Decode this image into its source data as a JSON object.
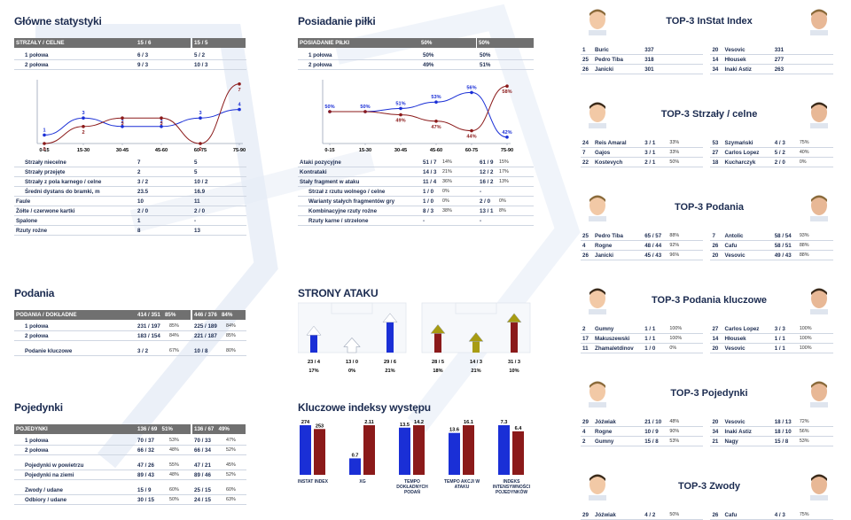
{
  "main_stats": {
    "title": "Główne statystyki",
    "header": {
      "label": "STRZAŁY / CELNE",
      "a": "15 / 6",
      "b": "15 / 5"
    },
    "halves": [
      {
        "label": "1 połowa",
        "a": "6 / 3",
        "b": "5 / 2"
      },
      {
        "label": "2 połowa",
        "a": "9 / 3",
        "b": "10 / 3"
      }
    ],
    "rows": [
      {
        "label": "Strzały niecelne",
        "a": "7",
        "b": "5",
        "indent": true
      },
      {
        "label": "Strzały przejęte",
        "a": "2",
        "b": "5",
        "indent": true
      },
      {
        "label": "Strzały z pola karnego / celne",
        "a": "3 / 2",
        "b": "10 / 2",
        "indent": true
      },
      {
        "label": "Średni dystans do bramki, m",
        "a": "23.5",
        "b": "16.9",
        "indent": true
      },
      {
        "label": "Faule",
        "a": "10",
        "b": "11",
        "indent": false
      },
      {
        "label": "Żółte / czerwone kartki",
        "a": "2 / 0",
        "b": "2 / 0",
        "indent": false
      },
      {
        "label": "Spalone",
        "a": "1",
        "b": "-",
        "indent": false
      },
      {
        "label": "Rzuty rożne",
        "a": "8",
        "b": "13",
        "indent": false
      }
    ]
  },
  "shots_chart": {
    "type": "line",
    "categories": [
      "0-15",
      "15-30",
      "30-45",
      "45-60",
      "60-75",
      "75-90"
    ],
    "series": [
      {
        "values": [
          1,
          3,
          2,
          2,
          3,
          4
        ],
        "color": "#1a2fd6"
      },
      {
        "values": [
          0,
          2,
          3,
          3,
          0,
          7
        ],
        "color": "#8b1a1a"
      }
    ],
    "ylim": [
      0,
      7.5
    ]
  },
  "possession": {
    "title": "Posiadanie piłki",
    "header": {
      "label": "POSIADANIE PIŁKI",
      "a": "50%",
      "b": "50%"
    },
    "halves": [
      {
        "label": "1 połowa",
        "a": "50%",
        "b": "50%"
      },
      {
        "label": "2 połowa",
        "a": "49%",
        "b": "51%"
      }
    ],
    "rows": [
      {
        "label": "Ataki pozycyjne",
        "a": "51 / 7",
        "ap": "14%",
        "b": "61 / 9",
        "bp": "15%",
        "indent": false
      },
      {
        "label": "Kontrataki",
        "a": "14 / 3",
        "ap": "21%",
        "b": "12 / 2",
        "bp": "17%",
        "indent": false
      },
      {
        "label": "Stały fragment w ataku",
        "a": "11 / 4",
        "ap": "36%",
        "b": "16 / 2",
        "bp": "13%",
        "indent": false
      },
      {
        "label": "Strzał z rzutu wolnego / celne",
        "a": "1 / 0",
        "ap": "0%",
        "b": "-",
        "bp": "",
        "indent": true
      },
      {
        "label": "Warianty stałych fragmentów gry",
        "a": "1 / 0",
        "ap": "0%",
        "b": "2 / 0",
        "bp": "0%",
        "indent": true
      },
      {
        "label": "Kombinacyjne rzuty rożne",
        "a": "8 / 3",
        "ap": "38%",
        "b": "13 / 1",
        "bp": "8%",
        "indent": true
      },
      {
        "label": "Rzuty karne / strzelone",
        "a": "-",
        "ap": "",
        "b": "-",
        "bp": "",
        "indent": true
      }
    ]
  },
  "possession_chart": {
    "type": "line",
    "categories": [
      "0-15",
      "15-30",
      "30-45",
      "45-60",
      "60-75",
      "75-90"
    ],
    "series": [
      {
        "values": [
          50,
          50,
          51,
          53,
          56,
          42
        ],
        "labels": [
          "50%",
          "50%",
          "51%",
          "53%",
          "56%",
          "42%"
        ],
        "color": "#1a2fd6"
      },
      {
        "values": [
          50,
          50,
          49,
          47,
          44,
          58
        ],
        "labels": [
          "",
          "",
          "49%",
          "47%",
          "44%",
          "58%"
        ],
        "color": "#8b1a1a"
      }
    ],
    "ylim": [
      40,
      60
    ]
  },
  "passes": {
    "title": "Podania",
    "header": {
      "label": "PODANIA / DOKŁADNE",
      "a": "414 / 351",
      "ap": "85%",
      "b": "446 / 376",
      "bp": "84%"
    },
    "rows": [
      {
        "label": "1 połowa",
        "a": "231 / 197",
        "ap": "85%",
        "b": "225 / 189",
        "bp": "84%",
        "gap": false
      },
      {
        "label": "2 połowa",
        "a": "183 / 154",
        "ap": "84%",
        "b": "221 / 187",
        "bp": "85%",
        "gap": false
      },
      {
        "label": "Podanie kluczowe",
        "a": "3 / 2",
        "ap": "67%",
        "b": "10 / 8",
        "bp": "80%",
        "gap": true
      }
    ]
  },
  "duels": {
    "title": "Pojedynki",
    "header": {
      "label": "POJEDYNKI",
      "a": "136 / 69",
      "ap": "51%",
      "b": "136 / 67",
      "bp": "49%"
    },
    "rows": [
      {
        "label": "1 połowa",
        "a": "70 / 37",
        "ap": "53%",
        "b": "70 / 33",
        "bp": "47%",
        "gap": false
      },
      {
        "label": "2 połowa",
        "a": "66 / 32",
        "ap": "48%",
        "b": "66 / 34",
        "bp": "52%",
        "gap": false
      },
      {
        "label": "Pojedynki w powietrzu",
        "a": "47 / 26",
        "ap": "55%",
        "b": "47 / 21",
        "bp": "45%",
        "gap": true
      },
      {
        "label": "Pojedynki na ziemi",
        "a": "89 / 43",
        "ap": "48%",
        "b": "89 / 46",
        "bp": "52%",
        "gap": false
      },
      {
        "label": "Zwody / udane",
        "a": "15 / 9",
        "ap": "60%",
        "b": "25 / 15",
        "bp": "60%",
        "gap": true
      },
      {
        "label": "Odbiory / udane",
        "a": "30 / 15",
        "ap": "50%",
        "b": "24 / 15",
        "bp": "63%",
        "gap": false
      }
    ]
  },
  "attack_sides": {
    "title": "STRONY ATAKU",
    "teams": [
      {
        "color": "#1a2fd6",
        "vals": [
          "23 / 4",
          "13 / 0",
          "29 / 6"
        ],
        "pcts": [
          "17%",
          "0%",
          "21%"
        ],
        "levels": [
          0.55,
          0.35,
          0.95
        ]
      },
      {
        "color": "#8b1a1a",
        "acolor": "#a89c12",
        "vals": [
          "28 / 5",
          "14 / 3",
          "31 / 3"
        ],
        "pcts": [
          "18%",
          "21%",
          "10%"
        ],
        "levels": [
          0.6,
          0.35,
          0.95
        ]
      }
    ]
  },
  "key_indexes": {
    "title": "Kluczowe indeksy występu",
    "type": "bar",
    "categories": [
      "INSTAT INDEX",
      "XG",
      "TEMPO DOKŁADNYCH PODAŃ",
      "TEMPO AKCJI W ATAKU",
      "INDEKS INTENSYWNOŚCI POJEDYNKÓW"
    ],
    "series": [
      {
        "values": [
          274,
          0.7,
          13.5,
          13.6,
          7.3
        ],
        "labels": [
          "274",
          "0.7",
          "13.5",
          "13.6",
          "7.3"
        ],
        "color": "#1a2fd6"
      },
      {
        "values": [
          253,
          2.11,
          14.2,
          16.1,
          6.4
        ],
        "labels": [
          "253",
          "2.11",
          "14.2",
          "16.1",
          "6.4"
        ],
        "color": "#8b1a1a"
      }
    ],
    "ymax": [
      274,
      2.11,
      14.2,
      16.1,
      7.3
    ]
  },
  "top3": [
    {
      "title": "TOP-3 InStat Index",
      "left": [
        [
          "1",
          "Buric",
          "337",
          ""
        ],
        [
          "25",
          "Pedro Tiba",
          "318",
          ""
        ],
        [
          "26",
          "Janicki",
          "301",
          ""
        ]
      ],
      "right": [
        [
          "20",
          "Vesovic",
          "331",
          ""
        ],
        [
          "14",
          "Hłousek",
          "277",
          ""
        ],
        [
          "34",
          "Inaki Astiz",
          "263",
          ""
        ]
      ]
    },
    {
      "title": "TOP-3 Strzały / celne",
      "left": [
        [
          "24",
          "Reis Amaral",
          "3 / 1",
          "33%"
        ],
        [
          "7",
          "Gajos",
          "3 / 1",
          "33%"
        ],
        [
          "22",
          "Kostevych",
          "2 / 1",
          "50%"
        ]
      ],
      "right": [
        [
          "53",
          "Szymański",
          "4 / 3",
          "75%"
        ],
        [
          "27",
          "Carlos Lopez",
          "5 / 2",
          "40%"
        ],
        [
          "18",
          "Kucharczyk",
          "2 / 0",
          "0%"
        ]
      ]
    },
    {
      "title": "TOP-3 Podania",
      "left": [
        [
          "25",
          "Pedro Tiba",
          "65 / 57",
          "88%"
        ],
        [
          "4",
          "Rogne",
          "48 / 44",
          "92%"
        ],
        [
          "26",
          "Janicki",
          "45 / 43",
          "96%"
        ]
      ],
      "right": [
        [
          "7",
          "Antolic",
          "58 / 54",
          "93%"
        ],
        [
          "26",
          "Cafu",
          "58 / 51",
          "88%"
        ],
        [
          "20",
          "Vesovic",
          "49 / 43",
          "88%"
        ]
      ]
    },
    {
      "title": "TOP-3 Podania kluczowe",
      "left": [
        [
          "2",
          "Gumny",
          "1 / 1",
          "100%"
        ],
        [
          "17",
          "Makuszewski",
          "1 / 1",
          "100%"
        ],
        [
          "11",
          "Zhamaletdinov",
          "1 / 0",
          "0%"
        ]
      ],
      "right": [
        [
          "27",
          "Carlos Lopez",
          "3 / 3",
          "100%"
        ],
        [
          "14",
          "Hłousek",
          "1 / 1",
          "100%"
        ],
        [
          "20",
          "Vesovic",
          "1 / 1",
          "100%"
        ]
      ]
    },
    {
      "title": "TOP-3 Pojedynki",
      "left": [
        [
          "29",
          "Jóźwiak",
          "21 / 10",
          "48%"
        ],
        [
          "4",
          "Rogne",
          "10 / 9",
          "90%"
        ],
        [
          "2",
          "Gumny",
          "15 / 8",
          "53%"
        ]
      ],
      "right": [
        [
          "20",
          "Vesovic",
          "18 / 13",
          "72%"
        ],
        [
          "34",
          "Inaki Astiz",
          "18 / 10",
          "56%"
        ],
        [
          "21",
          "Nagy",
          "15 / 8",
          "53%"
        ]
      ]
    },
    {
      "title": "TOP-3 Zwody",
      "left": [
        [
          "29",
          "Jóźwiak",
          "4 / 2",
          "50%"
        ]
      ],
      "right": [
        [
          "26",
          "Cafu",
          "4 / 3",
          "75%"
        ]
      ]
    }
  ]
}
